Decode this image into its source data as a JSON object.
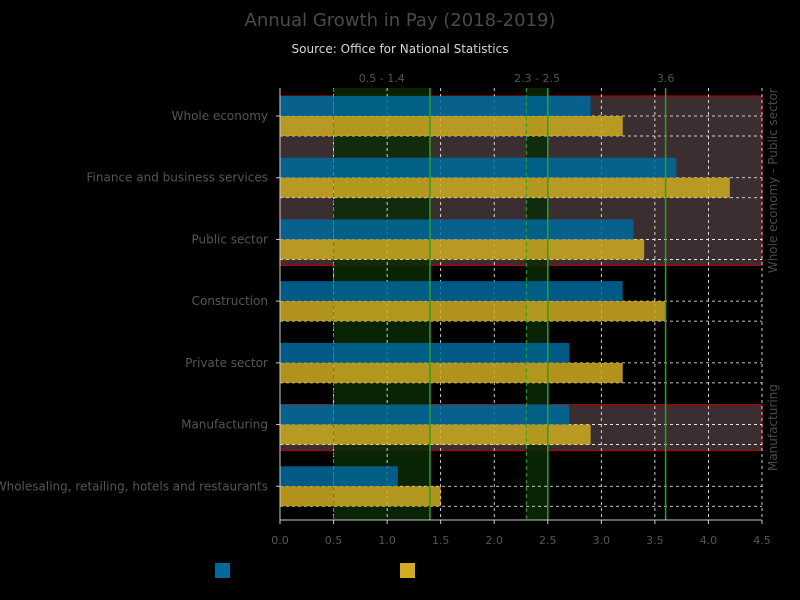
{
  "title": "Annual Growth in Pay (2018-2019)",
  "subtitle": "Source: Office for National Statistics",
  "colors": {
    "background": "#000000",
    "series_a": "#006a9c",
    "series_b": "#cfac22",
    "band_box": "#3a2e30",
    "band_border": "#b00000",
    "range_fill": "#0b2a06",
    "range_line": "#2aa31e",
    "grid": "#ffffff",
    "axis_text": "#555555"
  },
  "chart_data": {
    "type": "bar",
    "orientation": "horizontal",
    "categories": [
      "Whole economy",
      "Finance and business services",
      "Public sector",
      "Construction",
      "Private sector",
      "Manufacturing",
      "Wholesaling, retailing, hotels and restaurants"
    ],
    "series": [
      {
        "name": "",
        "color": "#006a9c",
        "values": [
          2.9,
          3.7,
          3.3,
          3.2,
          2.7,
          2.7,
          1.1
        ]
      },
      {
        "name": "",
        "color": "#cfac22",
        "values": [
          3.2,
          4.2,
          3.4,
          3.6,
          3.2,
          2.9,
          1.5
        ]
      }
    ],
    "xlim": [
      0,
      4.5
    ],
    "xticks": [
      "0.0",
      "0.5",
      "1.0",
      "1.5",
      "2.0",
      "2.5",
      "3.0",
      "3.5",
      "4.0",
      "4.5"
    ],
    "grid": true,
    "legend_position": "bottom",
    "vertical_ranges": [
      {
        "label": "0.5 - 1.4",
        "from": 0.5,
        "to": 1.4
      },
      {
        "label": "2.3 - 2.5",
        "from": 2.3,
        "to": 2.5
      }
    ],
    "vertical_lines": [
      {
        "label": "3.6",
        "value": 3.6
      }
    ],
    "category_bands": [
      {
        "label": "Whole economy - Public sector",
        "from_index": 0,
        "to_index": 2
      },
      {
        "label": "Manufacturing",
        "from_index": 5,
        "to_index": 5
      }
    ]
  }
}
